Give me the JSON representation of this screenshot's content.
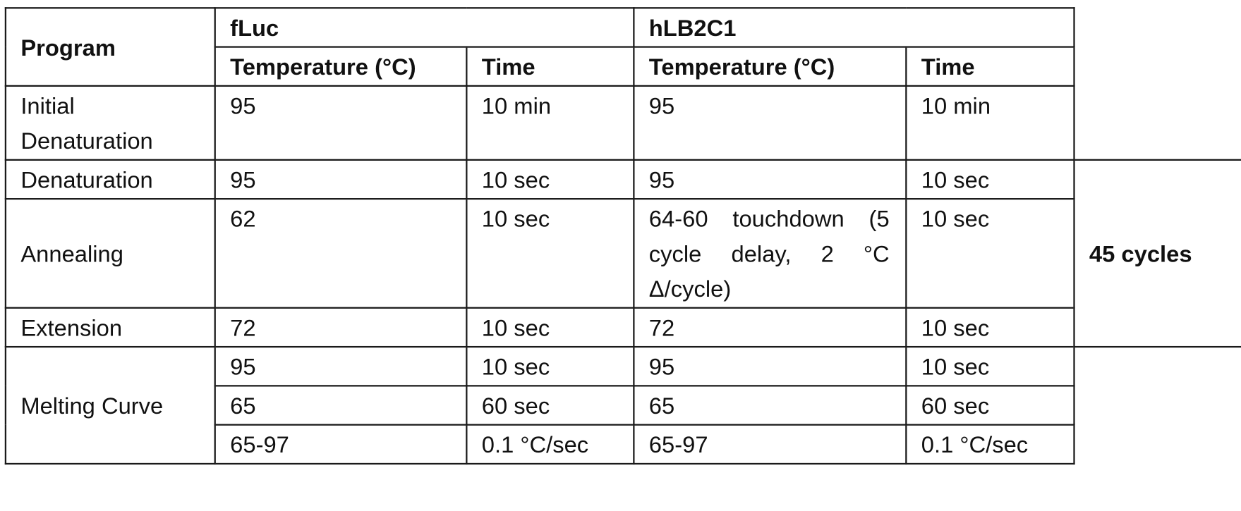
{
  "table": {
    "header": {
      "program": "Program",
      "group_1": "fLuc",
      "group_2": "hLB2C1",
      "temperature": "Temperature (°C)",
      "time": "Time"
    },
    "rows": [
      {
        "program": "Initial Denaturation",
        "fluc_temp": "95",
        "fluc_time": "10 min",
        "hlb_temp": "95",
        "hlb_time": "10 min"
      },
      {
        "program": "Denaturation",
        "fluc_temp": "95",
        "fluc_time": "10 sec",
        "hlb_temp": "95",
        "hlb_time": "10 sec"
      },
      {
        "program": "Annealing",
        "fluc_temp": "62",
        "fluc_time": "10 sec",
        "hlb_temp": "64-60 touchdown (5 cycle delay, 2 °C Δ/cycle)",
        "hlb_time": "10 sec"
      },
      {
        "program": "Extension",
        "fluc_temp": "72",
        "fluc_time": "10 sec",
        "hlb_temp": "72",
        "hlb_time": "10 sec"
      }
    ],
    "cycles_label": "45 cycles",
    "melting": {
      "program": "Melting Curve",
      "steps": [
        {
          "fluc_temp": "95",
          "fluc_time": "10 sec",
          "hlb_temp": "95",
          "hlb_time": "10 sec"
        },
        {
          "fluc_temp": "65",
          "fluc_time": "60 sec",
          "hlb_temp": "65",
          "hlb_time": "60 sec"
        },
        {
          "fluc_temp": "65-97",
          "fluc_time": "0.1 °C/sec",
          "hlb_temp": "65-97",
          "hlb_time": "0.1 °C/sec"
        }
      ]
    }
  }
}
